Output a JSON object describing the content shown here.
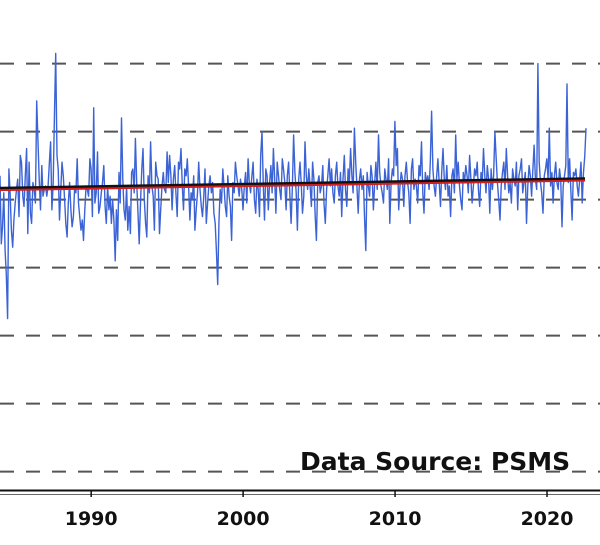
{
  "chart_data": {
    "type": "line",
    "title": "",
    "xlabel": "",
    "ylabel": "",
    "source_text": "Data Source: PSMS",
    "x_ticks": [
      1990,
      2000,
      2010,
      2020
    ],
    "xlim": [
      1984.0,
      2022.5
    ],
    "ylim": [
      -5.9,
      2.7
    ],
    "grid": "y-dashed",
    "series": [
      {
        "name": "",
        "color": "#3b63d6",
        "x_start": 1984.0,
        "x_step": 0.0833,
        "values": [
          0.35,
          -0.65,
          -0.4,
          0.1,
          -0.75,
          -1.1,
          -1.75,
          0.45,
          0.1,
          -0.45,
          -0.7,
          -0.3,
          -0.05,
          0.15,
          0.3,
          -0.25,
          0.65,
          0.55,
          0.05,
          -0.1,
          0.35,
          0.75,
          -0.5,
          0.55,
          -0.2,
          -0.35,
          0.25,
          0.15,
          -0.05,
          1.45,
          0.85,
          0.3,
          -0.15,
          0.5,
          0.05,
          0.15,
          0.2,
          0.05,
          0.2,
          0.55,
          0.85,
          -0.15,
          0.25,
          1.2,
          2.15,
          0.65,
          0.45,
          -0.3,
          0.15,
          0.55,
          0.35,
          0.0,
          -0.35,
          -0.55,
          -0.05,
          0.25,
          -0.15,
          -0.4,
          -0.25,
          0.2,
          0.1,
          0.6,
          -0.05,
          -0.25,
          -0.45,
          -0.3,
          -0.6,
          -0.15,
          0.2,
          0.15,
          0.05,
          0.6,
          0.45,
          -0.25,
          1.35,
          -0.05,
          0.1,
          0.7,
          -0.2,
          -0.1,
          0.1,
          0.25,
          0.5,
          -0.1,
          -0.35,
          0.2,
          -0.15,
          0.05,
          -0.35,
          0.0,
          -0.3,
          -0.9,
          -0.15,
          -0.6,
          0.4,
          -0.05,
          1.2,
          0.3,
          -0.15,
          -0.3,
          0.2,
          -0.45,
          -0.1,
          -0.5,
          0.4,
          0.45,
          0.1,
          0.9,
          0.25,
          -0.2,
          -0.65,
          -0.05,
          0.45,
          0.75,
          0.0,
          -0.35,
          -0.55,
          0.35,
          0.1,
          0.85,
          0.2,
          0.05,
          -0.45,
          0.55,
          0.35,
          0.3,
          -0.5,
          -0.15,
          0.2,
          0.4,
          0.15,
          0.1,
          0.7,
          0.25,
          0.65,
          0.35,
          -0.15,
          0.3,
          0.5,
          0.1,
          -0.25,
          0.55,
          0.45,
          0.75,
          0.2,
          -0.15,
          0.45,
          0.35,
          0.6,
          0.2,
          -0.3,
          0.1,
          0.0,
          0.35,
          -0.45,
          -0.15,
          0.1,
          0.55,
          0.15,
          -0.1,
          -0.25,
          0.05,
          0.45,
          -0.35,
          -0.05,
          0.2,
          0.35,
          0.1,
          0.25,
          -0.2,
          -0.35,
          -0.75,
          -1.25,
          -0.3,
          0.15,
          -0.05,
          0.45,
          0.2,
          -0.1,
          -0.25,
          0.35,
          0.05,
          -0.1,
          -0.6,
          0.25,
          0.1,
          0.55,
          0.35,
          0.2,
          0.05,
          0.3,
          0.15,
          -0.15,
          0.2,
          0.4,
          -0.05,
          0.6,
          0.25,
          0.1,
          0.35,
          0.55,
          0.0,
          -0.2,
          0.3,
          0.15,
          -0.25,
          0.65,
          1.0,
          0.2,
          -0.3,
          0.45,
          0.35,
          -0.15,
          0.25,
          0.5,
          0.1,
          0.75,
          0.3,
          -0.2,
          0.55,
          0.35,
          0.15,
          0.0,
          0.6,
          0.45,
          0.25,
          -0.15,
          0.35,
          0.55,
          0.05,
          -0.35,
          0.2,
          0.95,
          0.4,
          0.1,
          -0.45,
          0.3,
          0.55,
          0.25,
          -0.2,
          0.05,
          0.85,
          0.35,
          0.15,
          0.45,
          0.2,
          -0.1,
          0.55,
          0.3,
          -0.25,
          -0.6,
          0.25,
          0.35,
          0.1,
          0.2,
          0.5,
          -0.05,
          -0.35,
          0.15,
          0.35,
          0.6,
          0.2,
          0.45,
          0.1,
          -0.05,
          0.35,
          0.55,
          0.2,
          0.05,
          0.4,
          -0.25,
          0.3,
          0.65,
          0.15,
          -0.1,
          0.45,
          0.25,
          0.75,
          0.35,
          0.1,
          1.05,
          0.55,
          0.2,
          -0.2,
          0.3,
          0.45,
          0.15,
          0.35,
          -0.25,
          -0.75,
          0.4,
          0.2,
          0.05,
          0.5,
          0.35,
          -0.15,
          0.25,
          0.55,
          0.15,
          0.95,
          0.4,
          0.2,
          0.1,
          -0.05,
          0.45,
          0.3,
          0.15,
          0.6,
          -0.35,
          0.25,
          0.45,
          0.35,
          1.15,
          0.5,
          0.75,
          -0.15,
          0.2,
          0.4,
          0.3,
          -0.1,
          0.35,
          0.55,
          0.25,
          0.1,
          -0.35,
          0.45,
          0.6,
          0.15,
          0.3,
          0.2,
          -0.05,
          0.5,
          0.35,
          0.85,
          0.1,
          -0.2,
          0.4,
          0.25,
          0.35,
          0.15,
          0.55,
          1.3,
          0.45,
          0.2,
          0.05,
          0.35,
          0.6,
          0.25,
          -0.1,
          0.4,
          0.75,
          0.3,
          0.15,
          0.5,
          0.05,
          0.2,
          -0.25,
          0.35,
          0.45,
          0.1,
          0.95,
          0.3,
          0.55,
          0.2,
          0.0,
          -0.15,
          0.4,
          0.25,
          0.5,
          0.35,
          0.1,
          0.65,
          0.3,
          -0.05,
          0.2,
          0.45,
          0.35,
          0.55,
          0.15,
          -0.1,
          0.4,
          0.25,
          0.75,
          0.35,
          0.1,
          0.5,
          0.3,
          -0.2,
          0.45,
          0.15,
          0.35,
          1.0,
          0.6,
          0.25,
          0.0,
          -0.3,
          0.2,
          0.4,
          0.55,
          0.15,
          0.75,
          0.35,
          0.1,
          0.25,
          -0.05,
          0.45,
          0.3,
          0.2,
          0.55,
          -0.15,
          0.35,
          0.45,
          0.6,
          0.1,
          0.25,
          0.4,
          -0.35,
          0.2,
          0.5,
          0.35,
          0.05,
          0.45,
          0.8,
          0.3,
          0.15,
          2.0,
          0.55,
          0.25,
          0.1,
          -0.2,
          0.35,
          0.45,
          0.6,
          0.3,
          1.05,
          0.2,
          0.4,
          -0.05,
          0.35,
          0.55,
          0.25,
          0.15,
          0.45,
          0.3,
          -0.4,
          0.2,
          0.35,
          0.5,
          1.7,
          0.25,
          0.6,
          0.15,
          -0.3,
          0.4,
          0.35,
          0.45,
          0.2,
          0.05,
          0.3,
          0.55,
          -0.05,
          0.4,
          0.65,
          1.05
        ]
      },
      {
        "name": "",
        "color": "#111111",
        "x": [
          1984.0,
          2022.5
        ],
        "values": [
          0.16,
          0.3
        ]
      },
      {
        "name": "",
        "color": "#d11f1f",
        "x": [
          1984.0,
          2022.5
        ],
        "values": [
          0.14,
          0.28
        ]
      }
    ]
  }
}
